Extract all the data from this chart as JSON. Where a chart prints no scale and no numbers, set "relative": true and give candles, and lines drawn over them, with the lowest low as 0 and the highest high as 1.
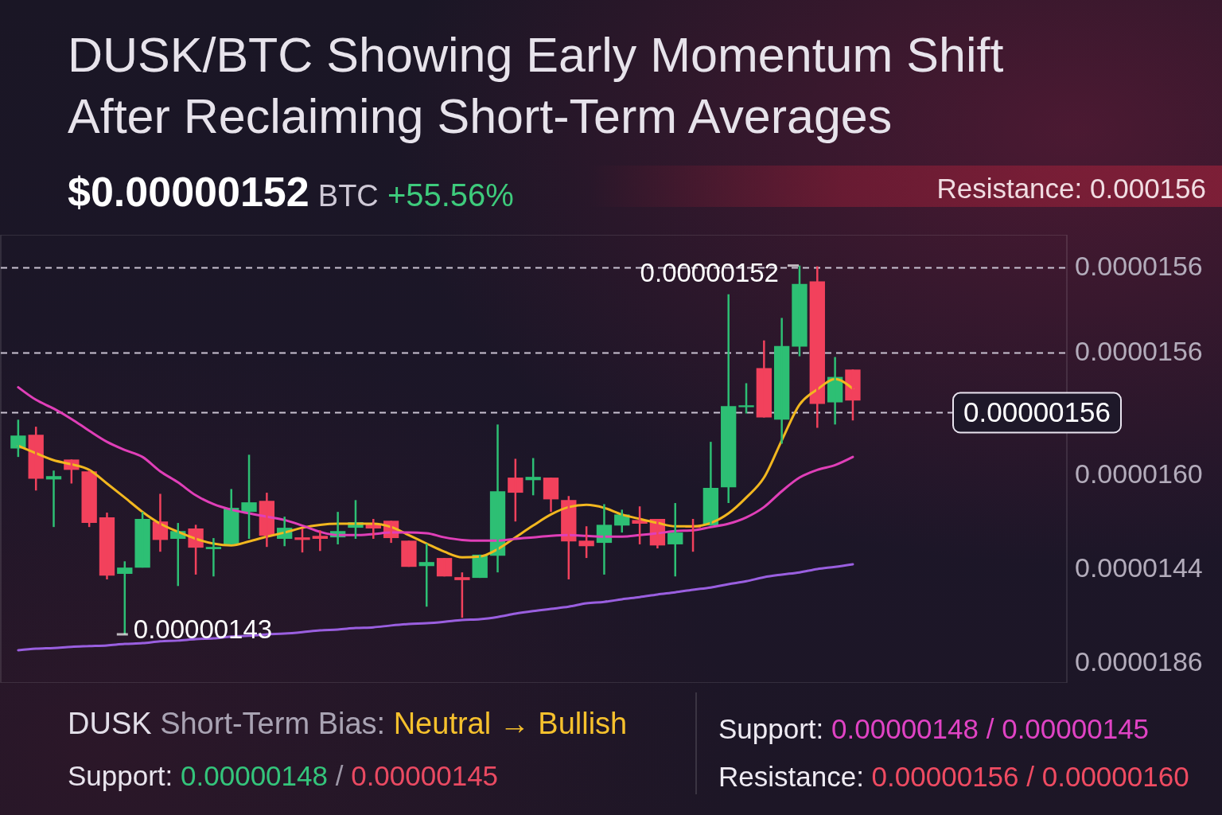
{
  "chart_data": {
    "type": "candlestick",
    "title": "DUSK/BTC Showing Early Momentum Shift After Reclaiming Short-Term Averages",
    "subtitle": "$0.00000152 BTC +55.56%",
    "relative": true,
    "categories": [
      null,
      null,
      null,
      null,
      null,
      null,
      null,
      null,
      null,
      null,
      null,
      null,
      null,
      null,
      null,
      null,
      null,
      null,
      null,
      null,
      null,
      null,
      null,
      null,
      null,
      null,
      null,
      null,
      null,
      null,
      null,
      null,
      null,
      null,
      null,
      null,
      null,
      null,
      null,
      null,
      null,
      null,
      null,
      null,
      null,
      null,
      null,
      null
    ],
    "ohlc": [
      [
        0.504,
        0.582,
        0.481,
        0.539
      ],
      [
        0.541,
        0.563,
        0.39,
        0.422
      ],
      [
        0.42,
        0.444,
        0.291,
        0.429
      ],
      [
        0.474,
        0.474,
        0.409,
        0.446
      ],
      [
        0.442,
        0.444,
        0.291,
        0.302
      ],
      [
        0.317,
        0.33,
        0.149,
        0.159
      ],
      [
        0.164,
        0.198,
        0,
        0.181
      ],
      [
        0.181,
        0.332,
        0.181,
        0.313
      ],
      [
        0.306,
        0.381,
        0.224,
        0.256
      ],
      [
        0.259,
        0.302,
        0.131,
        0.28
      ],
      [
        0.287,
        0.297,
        0.162,
        0.235
      ],
      [
        0.231,
        0.261,
        0.157,
        0.237
      ],
      [
        0.244,
        0.394,
        0.244,
        0.343
      ],
      [
        0.332,
        0.487,
        0.259,
        0.358
      ],
      [
        0.362,
        0.384,
        0.237,
        0.267
      ],
      [
        0.259,
        0.319,
        0.239,
        0.289
      ],
      [
        0.263,
        0.287,
        0.222,
        0.256
      ],
      [
        0.267,
        0.282,
        0.226,
        0.259
      ],
      [
        0.263,
        0.332,
        0.244,
        0.28
      ],
      [
        0.289,
        0.364,
        0.259,
        0.304
      ],
      [
        0.3,
        0.313,
        0.259,
        0.287
      ],
      [
        0.308,
        0.308,
        0.248,
        0.261
      ],
      [
        0.254,
        0.254,
        0.183,
        0.183
      ],
      [
        0.185,
        0.246,
        0.075,
        0.196
      ],
      [
        0.207,
        0.207,
        0.157,
        0.157
      ],
      [
        0.155,
        0.168,
        0.045,
        0.147
      ],
      [
        0.153,
        0.216,
        0.153,
        0.216
      ],
      [
        0.213,
        0.569,
        0.168,
        0.388
      ],
      [
        0.425,
        0.476,
        0.306,
        0.384
      ],
      [
        0.418,
        0.478,
        0.377,
        0.427
      ],
      [
        0.425,
        0.425,
        0.332,
        0.366
      ],
      [
        0.364,
        0.375,
        0.149,
        0.252
      ],
      [
        0.254,
        0.293,
        0.207,
        0.239
      ],
      [
        0.248,
        0.353,
        0.162,
        0.297
      ],
      [
        0.295,
        0.338,
        0.276,
        0.325
      ],
      [
        0.31,
        0.347,
        0.244,
        0.3
      ],
      [
        0.313,
        0.313,
        0.233,
        0.241
      ],
      [
        0.244,
        0.356,
        0.157,
        0.276
      ],
      [
        0.295,
        0.313,
        0.224,
        0.289
      ],
      [
        0.295,
        0.522,
        0.295,
        0.397
      ],
      [
        0.399,
        0.922,
        0.356,
        0.619
      ],
      [
        0.616,
        0.681,
        0.599,
        0.621
      ],
      [
        0.722,
        0.797,
        0.588,
        0.588
      ],
      [
        0.582,
        0.858,
        0.517,
        0.782
      ],
      [
        0.78,
        1,
        0.754,
        0.95
      ],
      [
        0.957,
        0.998,
        0.56,
        0.625
      ],
      [
        0.629,
        0.752,
        0.569,
        0.698
      ],
      [
        0.718,
        0.718,
        0.58,
        0.634
      ]
    ],
    "colors": [
      "#2dbf74",
      "#f2415c",
      "#2dbf74",
      "#f2415c",
      "#f2415c",
      "#f2415c",
      "#2dbf74",
      "#2dbf74",
      "#f2415c",
      "#2dbf74",
      "#f2415c",
      "#2dbf74",
      "#2dbf74",
      "#2dbf74",
      "#f2415c",
      "#2dbf74",
      "#f2415c",
      "#f2415c",
      "#2dbf74",
      "#2dbf74",
      "#f2415c",
      "#f2415c",
      "#f2415c",
      "#2dbf74",
      "#f2415c",
      "#f2415c",
      "#2dbf74",
      "#2dbf74",
      "#f2415c",
      "#2dbf74",
      "#f2415c",
      "#f2415c",
      "#f2415c",
      "#2dbf74",
      "#2dbf74",
      "#f2415c",
      "#f2415c",
      "#2dbf74",
      "#f2415c",
      "#2dbf74",
      "#2dbf74",
      "#2dbf74",
      "#f2415c",
      "#2dbf74",
      "#2dbf74",
      "#f2415c",
      "#2dbf74",
      "#f2415c"
    ],
    "series": [
      {
        "type": "line",
        "color": "#f2b71f",
        "values": [
          0.511,
          0.491,
          0.472,
          0.461,
          0.446,
          0.409,
          0.371,
          0.332,
          0.3,
          0.278,
          0.259,
          0.246,
          0.241,
          0.252,
          0.265,
          0.276,
          0.289,
          0.297,
          0.3,
          0.3,
          0.3,
          0.291,
          0.269,
          0.246,
          0.224,
          0.209,
          0.211,
          0.231,
          0.263,
          0.295,
          0.325,
          0.345,
          0.351,
          0.343,
          0.325,
          0.313,
          0.302,
          0.293,
          0.293,
          0.302,
          0.328,
          0.371,
          0.425,
          0.526,
          0.623,
          0.664,
          0.692,
          0.666
        ]
      },
      {
        "type": "line",
        "color": "#e03fb8",
        "values": [
          0.67,
          0.636,
          0.612,
          0.584,
          0.552,
          0.522,
          0.5,
          0.481,
          0.442,
          0.412,
          0.377,
          0.353,
          0.338,
          0.328,
          0.319,
          0.31,
          0.295,
          0.278,
          0.269,
          0.269,
          0.272,
          0.276,
          0.276,
          0.274,
          0.263,
          0.256,
          0.254,
          0.254,
          0.259,
          0.263,
          0.267,
          0.269,
          0.267,
          0.265,
          0.265,
          0.269,
          0.274,
          0.28,
          0.282,
          0.291,
          0.3,
          0.317,
          0.345,
          0.388,
          0.425,
          0.446,
          0.459,
          0.481
        ]
      },
      {
        "type": "line",
        "color": "#9a5fe0",
        "values": [
          -0.043,
          -0.039,
          -0.037,
          -0.034,
          -0.032,
          -0.03,
          -0.026,
          -0.024,
          -0.019,
          -0.017,
          -0.013,
          -0.011,
          -0.006,
          -0.004,
          0,
          0.002,
          0.006,
          0.011,
          0.013,
          0.017,
          0.019,
          0.024,
          0.028,
          0.03,
          0.034,
          0.039,
          0.041,
          0.047,
          0.056,
          0.063,
          0.069,
          0.075,
          0.084,
          0.088,
          0.095,
          0.101,
          0.108,
          0.114,
          0.121,
          0.127,
          0.136,
          0.144,
          0.155,
          0.162,
          0.168,
          0.177,
          0.183,
          0.19
        ]
      }
    ],
    "ref_lines": [
      {
        "axis": "y",
        "value": 0.994,
        "line_style": "dashed",
        "color": "#c9c2d1"
      },
      {
        "axis": "y",
        "value": 0.763,
        "line_style": "dashed",
        "color": "#c9c2d1"
      },
      {
        "axis": "y",
        "value": 0.601,
        "line_style": "dashed",
        "color": "#c9c2d1"
      }
    ],
    "annotations": [
      "0.00000152",
      "0.00000143",
      "0.0000156",
      "0.0000156",
      "0.0000160",
      "0.0000144",
      "0.0000186",
      "0.00000156",
      "Resistance: 0.000156",
      "DUSK Short-Term Bias: Neutral → Bullish",
      "Support: 0.00000148 / 0.00000145",
      "Support: 0.00000148 / 0.00000145",
      "Resistance: 0.00000156 / 0.00000160"
    ]
  }
}
